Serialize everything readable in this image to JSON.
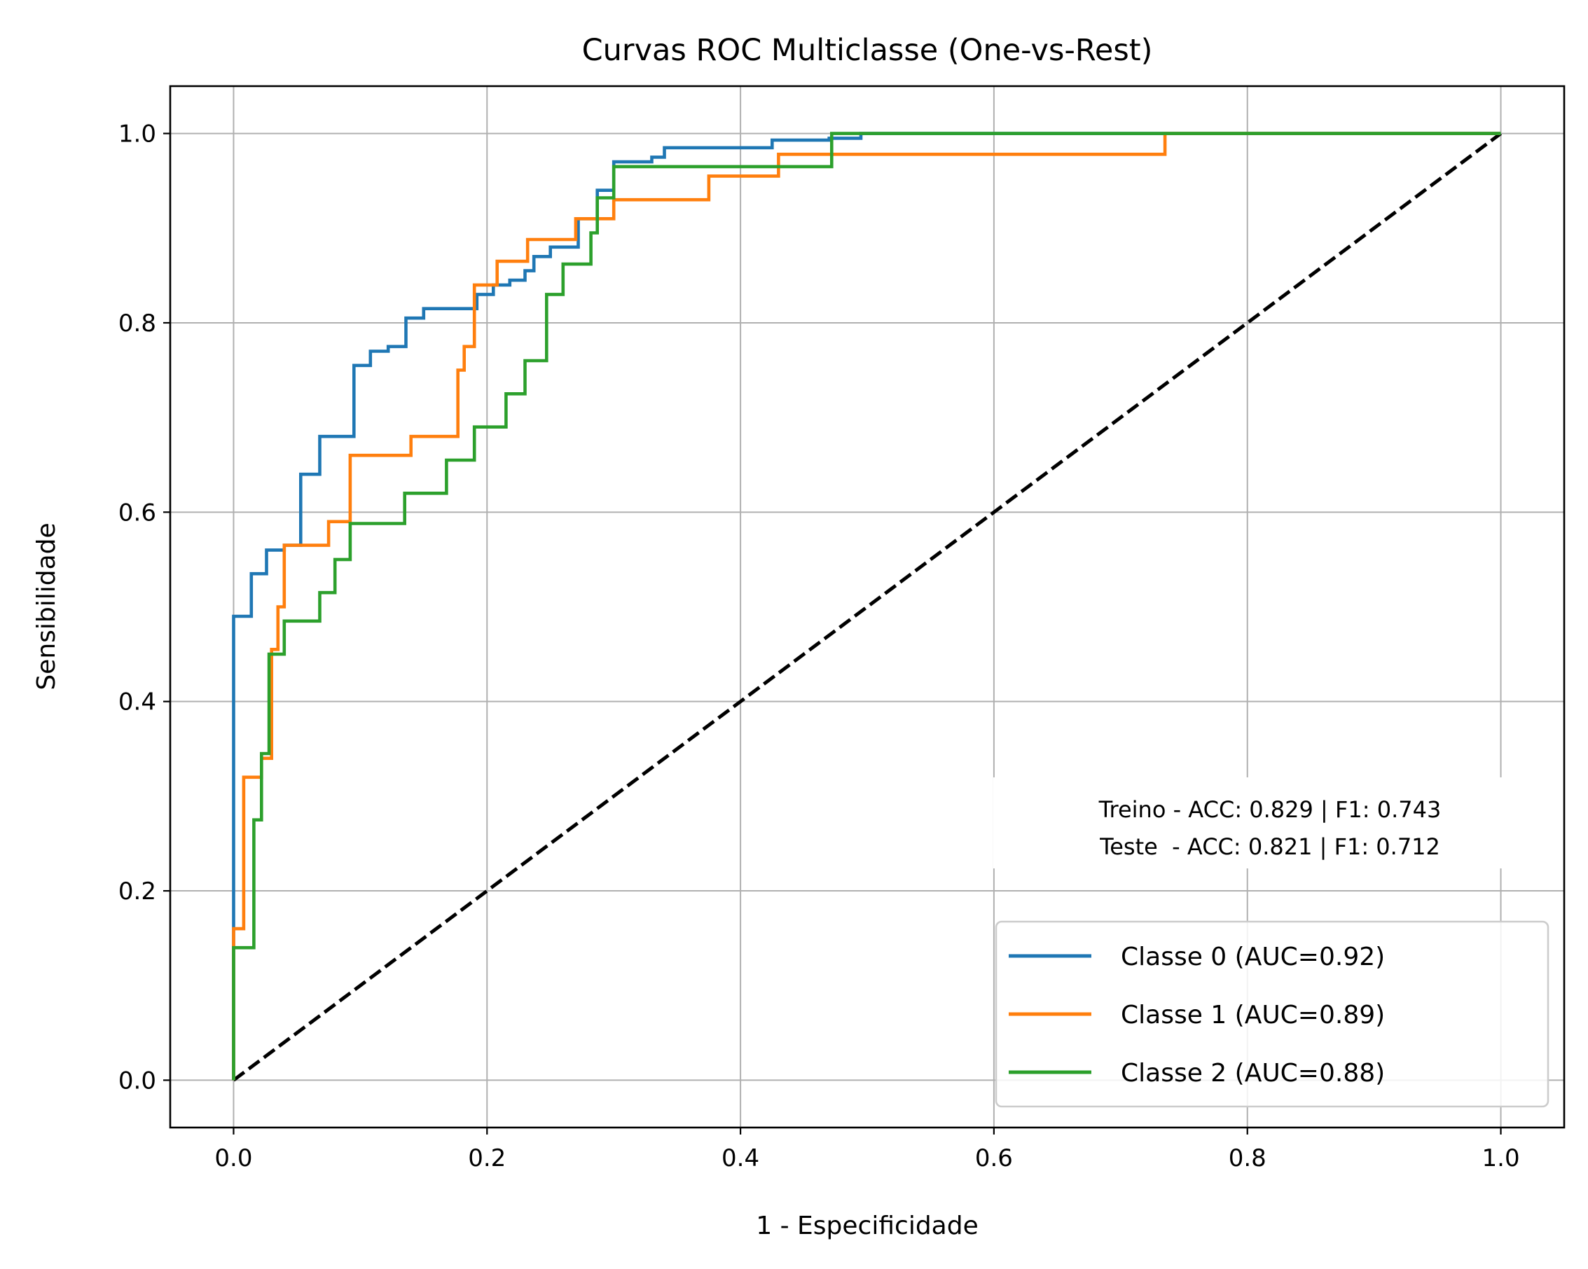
{
  "chart_data": {
    "type": "line",
    "title": "Curvas ROC Multiclasse (One-vs-Rest)",
    "xlabel": "1 - Especificidade",
    "ylabel": "Sensibilidade",
    "xlim": [
      -0.05,
      1.05
    ],
    "ylim": [
      -0.05,
      1.05
    ],
    "xticks": [
      "0.0",
      "0.2",
      "0.4",
      "0.6",
      "0.8",
      "1.0"
    ],
    "yticks": [
      "0.0",
      "0.2",
      "0.4",
      "0.6",
      "0.8",
      "1.0"
    ],
    "grid": true,
    "legend_position": "lower-right",
    "annotation": {
      "line1": "Treino - ACC: 0.829 | F1: 0.743",
      "line2": "Teste  - ACC: 0.821 | F1: 0.712"
    },
    "diagonal": {
      "x": [
        0,
        1
      ],
      "y": [
        0,
        1
      ],
      "color": "#000000",
      "style": "dashed"
    },
    "series": [
      {
        "name": "Classe 0 (AUC=0.92)",
        "color": "#1f77b4",
        "points": [
          [
            0,
            0
          ],
          [
            0,
            0.16
          ],
          [
            0,
            0.49
          ],
          [
            0.014,
            0.49
          ],
          [
            0.014,
            0.535
          ],
          [
            0.026,
            0.535
          ],
          [
            0.026,
            0.56
          ],
          [
            0.04,
            0.56
          ],
          [
            0.04,
            0.565
          ],
          [
            0.053,
            0.565
          ],
          [
            0.053,
            0.64
          ],
          [
            0.068,
            0.64
          ],
          [
            0.068,
            0.68
          ],
          [
            0.095,
            0.68
          ],
          [
            0.095,
            0.755
          ],
          [
            0.108,
            0.755
          ],
          [
            0.108,
            0.77
          ],
          [
            0.122,
            0.77
          ],
          [
            0.122,
            0.775
          ],
          [
            0.136,
            0.775
          ],
          [
            0.136,
            0.805
          ],
          [
            0.15,
            0.805
          ],
          [
            0.15,
            0.815
          ],
          [
            0.192,
            0.815
          ],
          [
            0.192,
            0.83
          ],
          [
            0.205,
            0.83
          ],
          [
            0.205,
            0.84
          ],
          [
            0.218,
            0.84
          ],
          [
            0.218,
            0.845
          ],
          [
            0.23,
            0.845
          ],
          [
            0.23,
            0.855
          ],
          [
            0.237,
            0.855
          ],
          [
            0.237,
            0.87
          ],
          [
            0.25,
            0.87
          ],
          [
            0.25,
            0.88
          ],
          [
            0.272,
            0.88
          ],
          [
            0.272,
            0.91
          ],
          [
            0.287,
            0.91
          ],
          [
            0.287,
            0.94
          ],
          [
            0.3,
            0.94
          ],
          [
            0.3,
            0.97
          ],
          [
            0.33,
            0.97
          ],
          [
            0.33,
            0.975
          ],
          [
            0.34,
            0.975
          ],
          [
            0.34,
            0.985
          ],
          [
            0.425,
            0.985
          ],
          [
            0.425,
            0.993
          ],
          [
            0.47,
            0.993
          ],
          [
            0.47,
            0.995
          ],
          [
            0.495,
            0.995
          ],
          [
            0.495,
            1.0
          ],
          [
            1.0,
            1.0
          ]
        ]
      },
      {
        "name": "Classe 1 (AUC=0.89)",
        "color": "#ff7f0e",
        "points": [
          [
            0,
            0
          ],
          [
            0,
            0.16
          ],
          [
            0.008,
            0.16
          ],
          [
            0.008,
            0.32
          ],
          [
            0.022,
            0.32
          ],
          [
            0.022,
            0.34
          ],
          [
            0.03,
            0.34
          ],
          [
            0.03,
            0.455
          ],
          [
            0.035,
            0.455
          ],
          [
            0.035,
            0.5
          ],
          [
            0.04,
            0.5
          ],
          [
            0.04,
            0.565
          ],
          [
            0.075,
            0.565
          ],
          [
            0.075,
            0.59
          ],
          [
            0.092,
            0.59
          ],
          [
            0.092,
            0.66
          ],
          [
            0.14,
            0.66
          ],
          [
            0.14,
            0.68
          ],
          [
            0.177,
            0.68
          ],
          [
            0.177,
            0.75
          ],
          [
            0.182,
            0.75
          ],
          [
            0.182,
            0.775
          ],
          [
            0.19,
            0.775
          ],
          [
            0.19,
            0.84
          ],
          [
            0.208,
            0.84
          ],
          [
            0.208,
            0.865
          ],
          [
            0.232,
            0.865
          ],
          [
            0.232,
            0.888
          ],
          [
            0.27,
            0.888
          ],
          [
            0.27,
            0.91
          ],
          [
            0.3,
            0.91
          ],
          [
            0.3,
            0.93
          ],
          [
            0.375,
            0.93
          ],
          [
            0.375,
            0.955
          ],
          [
            0.43,
            0.955
          ],
          [
            0.43,
            0.978
          ],
          [
            0.735,
            0.978
          ],
          [
            0.735,
            1.0
          ],
          [
            1.0,
            1.0
          ]
        ]
      },
      {
        "name": "Classe 2 (AUC=0.88)",
        "color": "#2ca02c",
        "points": [
          [
            0,
            0
          ],
          [
            0,
            0.14
          ],
          [
            0.016,
            0.14
          ],
          [
            0.016,
            0.275
          ],
          [
            0.022,
            0.275
          ],
          [
            0.022,
            0.345
          ],
          [
            0.028,
            0.345
          ],
          [
            0.028,
            0.45
          ],
          [
            0.04,
            0.45
          ],
          [
            0.04,
            0.485
          ],
          [
            0.068,
            0.485
          ],
          [
            0.068,
            0.515
          ],
          [
            0.08,
            0.515
          ],
          [
            0.08,
            0.55
          ],
          [
            0.092,
            0.55
          ],
          [
            0.092,
            0.588
          ],
          [
            0.135,
            0.588
          ],
          [
            0.135,
            0.62
          ],
          [
            0.168,
            0.62
          ],
          [
            0.168,
            0.655
          ],
          [
            0.19,
            0.655
          ],
          [
            0.19,
            0.69
          ],
          [
            0.215,
            0.69
          ],
          [
            0.215,
            0.725
          ],
          [
            0.23,
            0.725
          ],
          [
            0.23,
            0.76
          ],
          [
            0.247,
            0.76
          ],
          [
            0.247,
            0.83
          ],
          [
            0.26,
            0.83
          ],
          [
            0.26,
            0.862
          ],
          [
            0.282,
            0.862
          ],
          [
            0.282,
            0.895
          ],
          [
            0.287,
            0.895
          ],
          [
            0.287,
            0.932
          ],
          [
            0.3,
            0.932
          ],
          [
            0.3,
            0.965
          ],
          [
            0.472,
            0.965
          ],
          [
            0.472,
            1.0
          ],
          [
            1.0,
            1.0
          ]
        ]
      }
    ]
  }
}
